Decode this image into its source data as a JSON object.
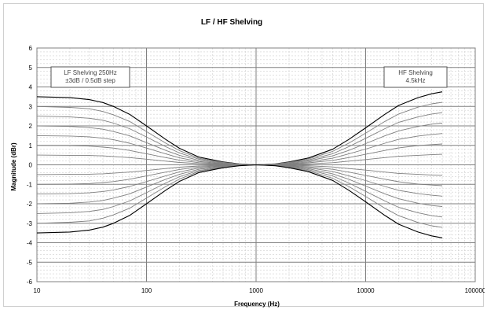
{
  "chart_data": {
    "type": "line",
    "title": "LF / HF Shelving",
    "xlabel": "Frequency (Hz)",
    "ylabel": "Magnitude (dBr)",
    "x_scale": "log",
    "xlim": [
      10,
      100000
    ],
    "ylim": [
      -6,
      6
    ],
    "x_ticks": [
      "10",
      "100",
      "1000",
      "10000",
      "100000"
    ],
    "y_ticks": [
      "6",
      "5",
      "4",
      "3",
      "2",
      "1",
      "0",
      "-1",
      "-2",
      "-3",
      "-4",
      "-5",
      "-6"
    ],
    "grid": true,
    "legend": "none",
    "line_colors": {
      "outer": "#000000",
      "inner": "#7f7f7f"
    },
    "annotations": [
      {
        "lines": [
          "LF Shelving 250Hz",
          "±3dB / 0.5dB step"
        ],
        "placement": "top-left"
      },
      {
        "lines": [
          "HF Shelving",
          "4.5kHz"
        ],
        "placement": "top-right"
      }
    ],
    "x": [
      10,
      20,
      30,
      40,
      50,
      70,
      100,
      150,
      200,
      300,
      500,
      700,
      1000,
      1500,
      2000,
      3000,
      5000,
      7000,
      10000,
      15000,
      20000,
      30000,
      40000,
      50000
    ],
    "series": [
      {
        "gain": 3.5,
        "values": [
          3.5,
          3.45,
          3.35,
          3.2,
          3.0,
          2.6,
          2.0,
          1.3,
          0.85,
          0.4,
          0.15,
          0.05,
          0.0,
          0.05,
          0.15,
          0.35,
          0.8,
          1.3,
          1.9,
          2.6,
          3.05,
          3.45,
          3.65,
          3.75
        ]
      },
      {
        "gain": 3.0,
        "values": [
          3.0,
          2.95,
          2.88,
          2.74,
          2.57,
          2.23,
          1.71,
          1.11,
          0.73,
          0.34,
          0.13,
          0.04,
          0.0,
          0.04,
          0.13,
          0.3,
          0.69,
          1.11,
          1.63,
          2.23,
          2.61,
          2.96,
          3.13,
          3.21
        ]
      },
      {
        "gain": 2.5,
        "values": [
          2.5,
          2.46,
          2.39,
          2.29,
          2.14,
          1.86,
          1.43,
          0.93,
          0.61,
          0.29,
          0.11,
          0.04,
          0.0,
          0.04,
          0.11,
          0.25,
          0.57,
          0.93,
          1.36,
          1.86,
          2.18,
          2.46,
          2.61,
          2.68
        ]
      },
      {
        "gain": 2.0,
        "values": [
          2.0,
          1.97,
          1.91,
          1.83,
          1.71,
          1.49,
          1.14,
          0.74,
          0.49,
          0.23,
          0.09,
          0.03,
          0.0,
          0.03,
          0.09,
          0.2,
          0.46,
          0.74,
          1.09,
          1.49,
          1.74,
          1.97,
          2.09,
          2.14
        ]
      },
      {
        "gain": 1.5,
        "values": [
          1.5,
          1.48,
          1.44,
          1.37,
          1.29,
          1.11,
          0.86,
          0.56,
          0.36,
          0.17,
          0.06,
          0.02,
          0.0,
          0.02,
          0.06,
          0.15,
          0.34,
          0.56,
          0.81,
          1.11,
          1.31,
          1.48,
          1.56,
          1.61
        ]
      },
      {
        "gain": 1.0,
        "values": [
          1.0,
          0.99,
          0.96,
          0.91,
          0.86,
          0.74,
          0.57,
          0.37,
          0.24,
          0.11,
          0.04,
          0.01,
          0.0,
          0.01,
          0.04,
          0.1,
          0.23,
          0.37,
          0.54,
          0.74,
          0.87,
          0.99,
          1.04,
          1.07
        ]
      },
      {
        "gain": 0.5,
        "values": [
          0.5,
          0.49,
          0.48,
          0.46,
          0.43,
          0.37,
          0.29,
          0.19,
          0.12,
          0.06,
          0.02,
          0.01,
          0.0,
          0.01,
          0.02,
          0.05,
          0.11,
          0.19,
          0.27,
          0.37,
          0.44,
          0.49,
          0.52,
          0.54
        ]
      },
      {
        "gain": -0.5,
        "values": [
          -0.5,
          -0.49,
          -0.48,
          -0.46,
          -0.43,
          -0.37,
          -0.29,
          -0.19,
          -0.12,
          -0.06,
          -0.02,
          -0.01,
          0.0,
          -0.01,
          -0.02,
          -0.05,
          -0.11,
          -0.19,
          -0.27,
          -0.37,
          -0.44,
          -0.49,
          -0.52,
          -0.54
        ]
      },
      {
        "gain": -1.0,
        "values": [
          -1.0,
          -0.99,
          -0.96,
          -0.91,
          -0.86,
          -0.74,
          -0.57,
          -0.37,
          -0.24,
          -0.11,
          -0.04,
          -0.01,
          0.0,
          -0.01,
          -0.04,
          -0.1,
          -0.23,
          -0.37,
          -0.54,
          -0.74,
          -0.87,
          -0.99,
          -1.04,
          -1.07
        ]
      },
      {
        "gain": -1.5,
        "values": [
          -1.5,
          -1.48,
          -1.44,
          -1.37,
          -1.29,
          -1.11,
          -0.86,
          -0.56,
          -0.36,
          -0.17,
          -0.06,
          -0.02,
          0.0,
          -0.02,
          -0.06,
          -0.15,
          -0.34,
          -0.56,
          -0.81,
          -1.11,
          -1.31,
          -1.48,
          -1.56,
          -1.61
        ]
      },
      {
        "gain": -2.0,
        "values": [
          -2.0,
          -1.97,
          -1.91,
          -1.83,
          -1.71,
          -1.49,
          -1.14,
          -0.74,
          -0.49,
          -0.23,
          -0.09,
          -0.03,
          0.0,
          -0.03,
          -0.09,
          -0.2,
          -0.46,
          -0.74,
          -1.09,
          -1.49,
          -1.74,
          -1.97,
          -2.09,
          -2.14
        ]
      },
      {
        "gain": -2.5,
        "values": [
          -2.5,
          -2.46,
          -2.39,
          -2.29,
          -2.14,
          -1.86,
          -1.43,
          -0.93,
          -0.61,
          -0.29,
          -0.11,
          -0.04,
          0.0,
          -0.04,
          -0.11,
          -0.25,
          -0.57,
          -0.93,
          -1.36,
          -1.86,
          -2.18,
          -2.46,
          -2.61,
          -2.68
        ]
      },
      {
        "gain": -3.0,
        "values": [
          -3.0,
          -2.95,
          -2.88,
          -2.74,
          -2.57,
          -2.23,
          -1.71,
          -1.11,
          -0.73,
          -0.34,
          -0.13,
          -0.04,
          0.0,
          -0.04,
          -0.13,
          -0.3,
          -0.69,
          -1.11,
          -1.63,
          -2.23,
          -2.61,
          -2.96,
          -3.13,
          -3.21
        ]
      },
      {
        "gain": -3.5,
        "values": [
          -3.5,
          -3.45,
          -3.35,
          -3.2,
          -3.0,
          -2.6,
          -2.0,
          -1.3,
          -0.85,
          -0.4,
          -0.15,
          -0.05,
          0.0,
          -0.05,
          -0.15,
          -0.35,
          -0.8,
          -1.3,
          -1.9,
          -2.6,
          -3.05,
          -3.45,
          -3.65,
          -3.75
        ]
      }
    ]
  }
}
